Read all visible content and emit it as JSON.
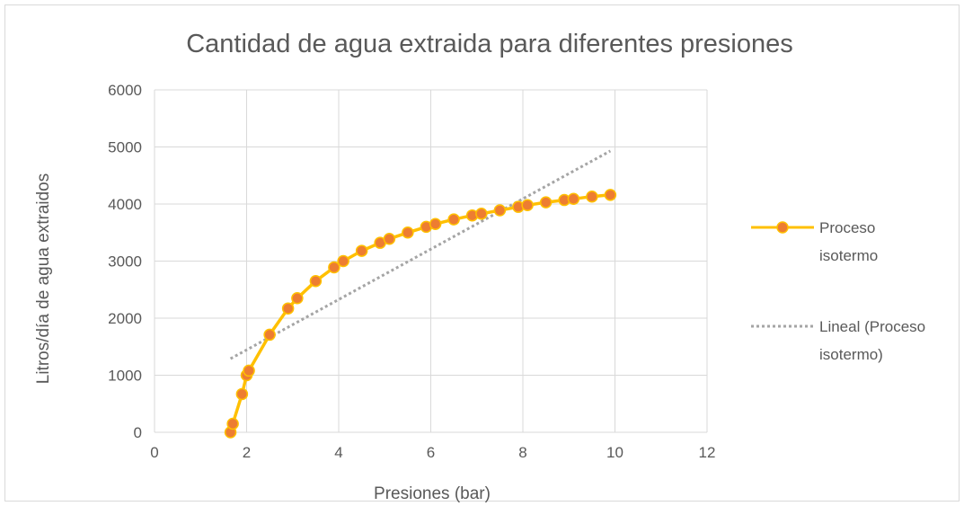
{
  "chart_data": {
    "type": "scatter",
    "title": "Cantidad de agua extraida para diferentes presiones",
    "xlabel": "Presiones (bar)",
    "ylabel": "Litros/día de agua extraidos",
    "xlim": [
      0,
      12
    ],
    "ylim": [
      0,
      6000
    ],
    "xticks": [
      0,
      2,
      4,
      6,
      8,
      10,
      12
    ],
    "yticks": [
      0,
      1000,
      2000,
      3000,
      4000,
      5000,
      6000
    ],
    "grid": true,
    "legend_position": "right",
    "series": [
      {
        "name": "Proceso isotermo",
        "style": "line-with-markers",
        "color": "#FFC000",
        "marker_color": "#ED7D31",
        "x": [
          1.65,
          1.7,
          1.9,
          2.0,
          2.05,
          2.5,
          2.9,
          3.1,
          3.5,
          3.9,
          4.1,
          4.5,
          4.9,
          5.1,
          5.5,
          5.9,
          6.1,
          6.5,
          6.9,
          7.1,
          7.5,
          7.9,
          8.1,
          8.5,
          8.9,
          9.1,
          9.5,
          9.9
        ],
        "y": [
          0,
          150,
          670,
          1000,
          1080,
          1710,
          2170,
          2350,
          2650,
          2890,
          3000,
          3180,
          3320,
          3390,
          3500,
          3600,
          3650,
          3730,
          3800,
          3830,
          3890,
          3950,
          3980,
          4030,
          4070,
          4090,
          4130,
          4160
        ]
      }
    ],
    "trendline": {
      "name": "Lineal (Proceso isotermo)",
      "type": "linear",
      "color": "#A5A5A5",
      "x": [
        1.65,
        9.9
      ],
      "y": [
        1290,
        4930
      ]
    },
    "legend": [
      {
        "line1": "Proceso",
        "line2": "isotermo"
      },
      {
        "line1": "Lineal (Proceso",
        "line2": "isotermo)"
      }
    ]
  }
}
